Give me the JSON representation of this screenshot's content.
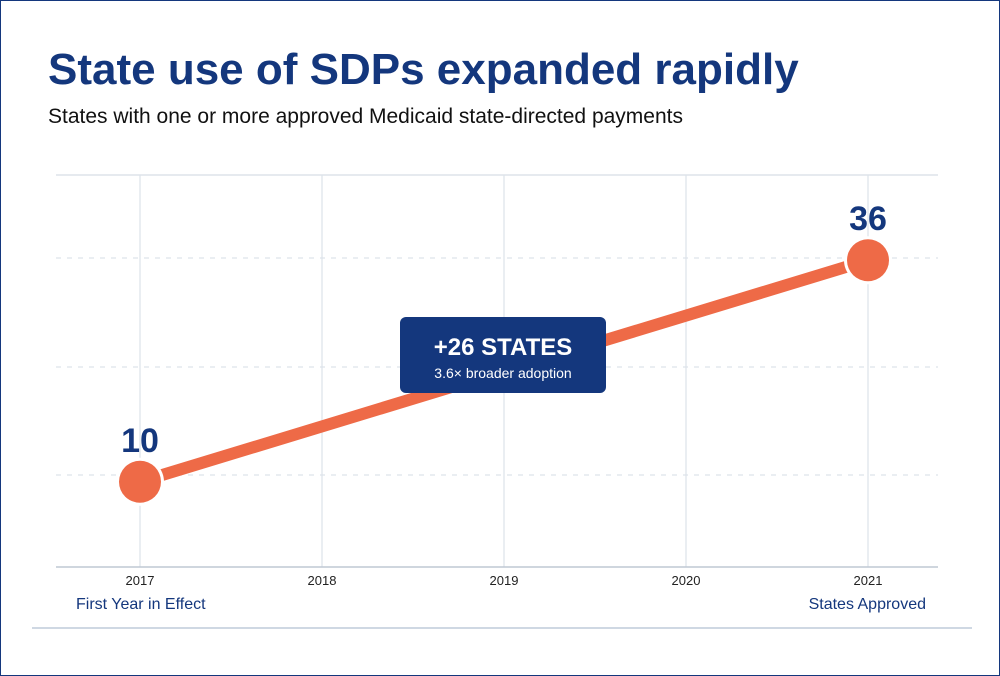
{
  "header": {
    "title": "State use of SDPs expanded rapidly",
    "subtitle": "States with one or more approved Medicaid state-directed payments"
  },
  "colors": {
    "title": "#14377d",
    "accent_line": "#ee6a47",
    "callout_bg": "#14377d",
    "grid": "#dde3ea"
  },
  "chart_data": {
    "type": "line",
    "title": "State use of SDPs expanded rapidly",
    "subtitle": "States with one or more approved Medicaid state-directed payments",
    "xlabel": "",
    "ylabel": "",
    "categories": [
      "2017",
      "2018",
      "2019",
      "2020",
      "2021"
    ],
    "ylim": [
      0,
      46
    ],
    "grid": true,
    "series": [
      {
        "points": [
          {
            "x": "2017",
            "y": 10
          },
          {
            "x": "2021",
            "y": 36
          }
        ]
      }
    ],
    "data_labels": [
      {
        "x": "2017",
        "text": "10"
      },
      {
        "x": "2021",
        "text": "36"
      }
    ],
    "x_annotations": [
      {
        "x": "2017",
        "text": "First Year in Effect",
        "anchor": "start"
      },
      {
        "x": "2021",
        "text": "States Approved",
        "anchor": "end"
      }
    ],
    "callout": {
      "title": "+26 STATES",
      "subtitle": "3.6× broader adoption"
    }
  }
}
